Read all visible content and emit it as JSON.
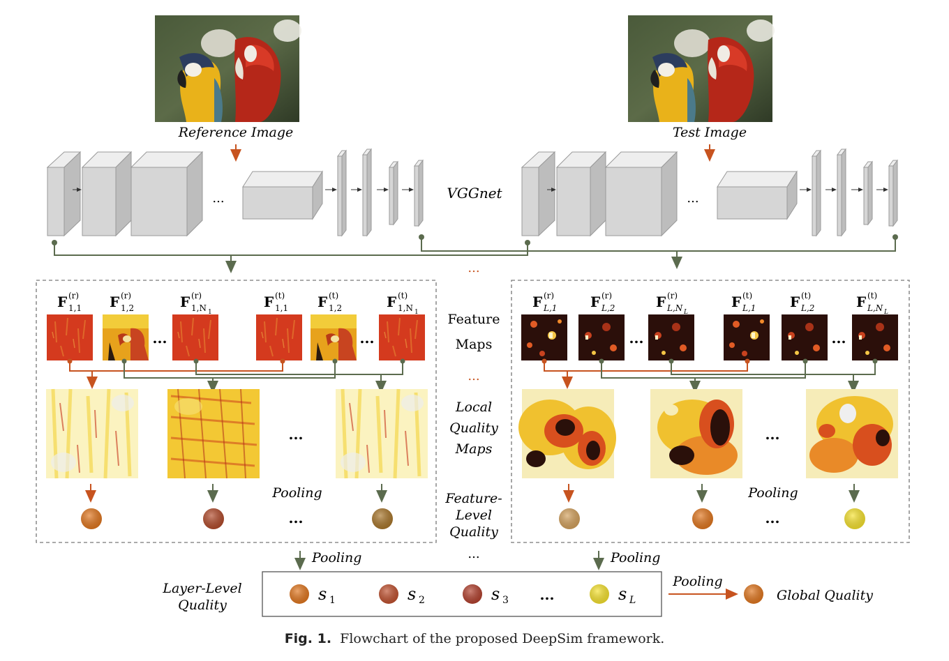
{
  "images": {
    "reference": {
      "label": "Reference Image"
    },
    "test": {
      "label": "Test Image"
    }
  },
  "network": {
    "label": "VGGnet",
    "ellipsis": "..."
  },
  "stage_labels": {
    "feature_maps_line1": "Feature",
    "feature_maps_line2": "Maps",
    "local_quality_line1": "Local",
    "local_quality_line2": "Quality",
    "local_quality_line3": "Maps",
    "feature_level_line1": "Feature-",
    "feature_level_line2": "Level",
    "feature_level_line3": "Quality",
    "layer_level_line1": "Layer-Level",
    "layer_level_line2": "Quality",
    "global_quality": "Global Quality"
  },
  "pooling_label": "Pooling",
  "layer1": {
    "features": [
      {
        "base": "F",
        "sup": "(r)",
        "sub": "1,1"
      },
      {
        "base": "F",
        "sup": "(r)",
        "sub": "1,2"
      },
      {
        "base": "F",
        "sup": "(r)",
        "sub": "1,N",
        "subsub": "1"
      },
      {
        "base": "F",
        "sup": "(t)",
        "sub": "1,1"
      },
      {
        "base": "F",
        "sup": "(t)",
        "sub": "1,2"
      },
      {
        "base": "F",
        "sup": "(t)",
        "sub": "1,N",
        "subsub": "1"
      }
    ],
    "quality_colors": [
      "#e2761d",
      "#b24a2a",
      "#a9762a"
    ]
  },
  "layerL": {
    "features": [
      {
        "base": "F",
        "sup": "(r)",
        "sub": "L,1"
      },
      {
        "base": "F",
        "sup": "(r)",
        "sub": "L,2"
      },
      {
        "base": "F",
        "sup": "(r)",
        "sub": "L,N",
        "subsub": "L"
      },
      {
        "base": "F",
        "sup": "(t)",
        "sub": "L,1"
      },
      {
        "base": "F",
        "sup": "(t)",
        "sub": "L,2"
      },
      {
        "base": "F",
        "sup": "(t)",
        "sub": "L,N",
        "subsub": "L"
      }
    ],
    "quality_colors": [
      "#d4a15c",
      "#e2761d",
      "#f7e32d"
    ]
  },
  "layer_scores": [
    {
      "symbol": "s",
      "sub": "1",
      "color": "#e2761d"
    },
    {
      "symbol": "s",
      "sub": "2",
      "color": "#c0502e"
    },
    {
      "symbol": "s",
      "sub": "3",
      "color": "#b3402d"
    },
    {
      "symbol": "s",
      "sub": "L",
      "color": "#f7e32d"
    }
  ],
  "global_color": "#e2761d",
  "colors": {
    "arrow_orange": "#c7531f",
    "arrow_green": "#5b6b4e",
    "block": "#d6d6d6"
  },
  "caption": {
    "fig": "Fig. 1.",
    "text": "Flowchart of the proposed DeepSim framework."
  }
}
